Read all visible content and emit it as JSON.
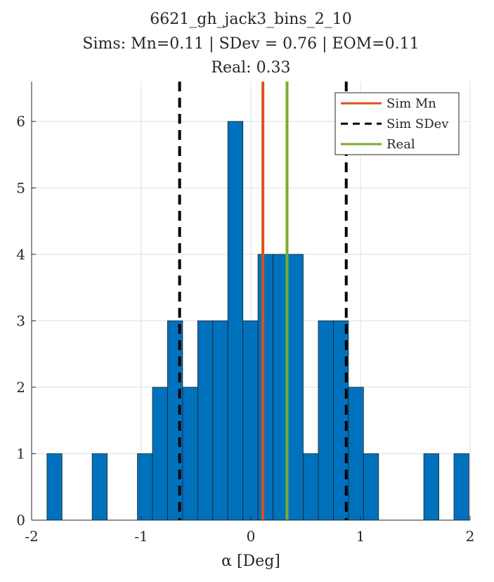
{
  "chart_data": {
    "type": "bar",
    "title_lines": [
      "6621_gh_jack3_bins_2_10",
      "Sims: Mn=0.11 | SDev = 0.76 | EOM=0.11",
      "Real: 0.33"
    ],
    "xlabel": "α [Deg]",
    "ylabel": "",
    "xlim": [
      -2,
      2
    ],
    "ylim": [
      0,
      6.6
    ],
    "xticks": [
      -2,
      -1,
      0,
      1,
      2
    ],
    "xtick_labels": [
      "-2",
      "-1",
      "0",
      "1",
      "2"
    ],
    "yticks": [
      0,
      1,
      2,
      3,
      4,
      5,
      6
    ],
    "ytick_labels": [
      "0",
      "1",
      "2",
      "3",
      "4",
      "5",
      "6"
    ],
    "grid": true,
    "bin_edges_start": -1.86,
    "bin_width": 0.1375,
    "counts": [
      1,
      0,
      0,
      1,
      0,
      0,
      1,
      2,
      3,
      2,
      3,
      3,
      6,
      3,
      4,
      4,
      4,
      1,
      3,
      3,
      2,
      1,
      0,
      0,
      0,
      1,
      0,
      1
    ],
    "bar_color": "#0072BD",
    "vlines": [
      {
        "name": "Sim Mn",
        "x": 0.11,
        "color": "#D95319",
        "style": "solid"
      },
      {
        "name": "Sim SDev",
        "x": -0.65,
        "color": "#000000",
        "style": "dashed"
      },
      {
        "name": "Sim SDev",
        "x": 0.87,
        "color": "#000000",
        "style": "dashed"
      },
      {
        "name": "Real",
        "x": 0.33,
        "color": "#77AC30",
        "style": "solid"
      }
    ],
    "legend": {
      "placement": "top-right",
      "entries": [
        {
          "label": "Sim Mn",
          "color": "#D95319",
          "style": "solid"
        },
        {
          "label": "Sim SDev",
          "color": "#000000",
          "style": "dashed"
        },
        {
          "label": "Real",
          "color": "#77AC30",
          "style": "solid"
        }
      ]
    }
  }
}
